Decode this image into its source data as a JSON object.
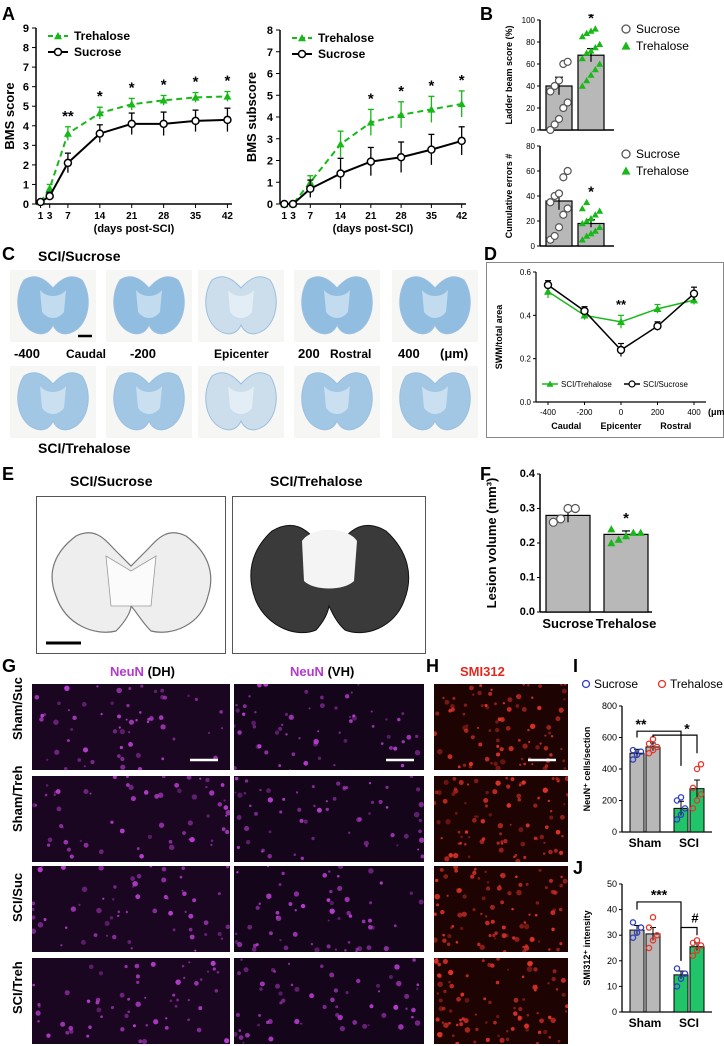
{
  "panel_letters": {
    "A": "A",
    "B": "B",
    "C": "C",
    "D": "D",
    "E": "E",
    "F": "F",
    "G": "G",
    "H": "H",
    "I": "I",
    "J": "J"
  },
  "colors": {
    "trehalose": "#18b818",
    "sucrose": "#000000",
    "nissl_blue": "#7fb3dd",
    "neun": "#c040d8",
    "smi": "#e8352b",
    "bar_gray": "#b8b8b8",
    "bar_green": "#22c46a",
    "sham_dot": "#2f3fc0",
    "treh_dot": "#e8352b"
  },
  "C": {
    "title_top": "SCI/Sucrose",
    "title_bottom": "SCI/Trehalose",
    "positions": [
      "-400",
      "Caudal",
      "-200",
      "Epicenter",
      "200",
      "Rostral",
      "400",
      "(μm)"
    ]
  },
  "E": {
    "left_title": "SCI/Sucrose",
    "right_title": "SCI/Trehalose"
  },
  "G": {
    "col1_a": "NeuN",
    "col1_b": "(DH)",
    "col2_a": "NeuN",
    "col2_b": "(VH)",
    "rows": [
      "Sham/Suc",
      "Sham/Treh",
      "SCI/Suc",
      "SCI/Treh"
    ]
  },
  "H": {
    "title": "SMI312"
  },
  "chart_data": [
    {
      "id": "A1",
      "type": "line",
      "x": [
        1,
        3,
        7,
        14,
        21,
        28,
        35,
        42
      ],
      "xticks": [
        1,
        3,
        7,
        14,
        21,
        28,
        35,
        42
      ],
      "xlabel": "(days post-SCI)",
      "ylabel": "BMS score",
      "ylim": [
        0,
        9
      ],
      "yticks": [
        0,
        1,
        2,
        3,
        4,
        5,
        6,
        7,
        8,
        9
      ],
      "legend_position": "top-left",
      "series": [
        {
          "name": "Trehalose",
          "values": [
            0.1,
            0.8,
            3.6,
            4.65,
            5.1,
            5.3,
            5.45,
            5.5
          ],
          "err": [
            0.1,
            0.2,
            0.35,
            0.3,
            0.3,
            0.25,
            0.25,
            0.25
          ],
          "style": "dashed",
          "color": "#18b818",
          "marker": "triangle"
        },
        {
          "name": "Sucrose",
          "values": [
            0.1,
            0.4,
            2.1,
            3.6,
            4.1,
            4.1,
            4.25,
            4.3
          ],
          "err": [
            0.1,
            0.2,
            0.5,
            0.45,
            0.55,
            0.6,
            0.55,
            0.6
          ],
          "style": "solid",
          "color": "#000000",
          "marker": "circle"
        }
      ],
      "annotations": [
        {
          "x": 7,
          "text": "**"
        },
        {
          "x": 14,
          "text": "*"
        },
        {
          "x": 21,
          "text": "*"
        },
        {
          "x": 28,
          "text": "*"
        },
        {
          "x": 35,
          "text": "*"
        },
        {
          "x": 42,
          "text": "*"
        }
      ]
    },
    {
      "id": "A2",
      "type": "line",
      "x": [
        1,
        3,
        7,
        14,
        21,
        28,
        35,
        42
      ],
      "xticks": [
        1,
        3,
        7,
        14,
        21,
        28,
        35,
        42
      ],
      "xlabel": "(days post-SCI)",
      "ylabel": "BMS subscore",
      "ylim": [
        0,
        8
      ],
      "yticks": [
        0,
        1,
        2,
        3,
        4,
        5,
        6,
        7,
        8
      ],
      "legend_position": "top-left",
      "series": [
        {
          "name": "Trehalose",
          "values": [
            0,
            0,
            1.0,
            2.75,
            3.75,
            4.1,
            4.35,
            4.6
          ],
          "err": [
            0,
            0,
            0.3,
            0.6,
            0.6,
            0.6,
            0.6,
            0.6
          ],
          "style": "dashed",
          "color": "#18b818",
          "marker": "triangle"
        },
        {
          "name": "Sucrose",
          "values": [
            0,
            0,
            0.7,
            1.4,
            1.95,
            2.15,
            2.5,
            2.9
          ],
          "err": [
            0,
            0,
            0.4,
            0.7,
            0.65,
            0.7,
            0.7,
            0.65
          ],
          "style": "solid",
          "color": "#000000",
          "marker": "circle"
        }
      ],
      "annotations": [
        {
          "x": 21,
          "text": "*"
        },
        {
          "x": 28,
          "text": "*"
        },
        {
          "x": 35,
          "text": "*"
        },
        {
          "x": 42,
          "text": "*"
        }
      ]
    },
    {
      "id": "B1",
      "type": "bar",
      "categories": [
        "Sucrose",
        "Trehalose"
      ],
      "values": [
        40,
        68
      ],
      "err": [
        8,
        6
      ],
      "ylabel": "Ladder beam score (%)",
      "ylim": [
        0,
        100
      ],
      "yticks": [
        0,
        20,
        40,
        60,
        80,
        100
      ],
      "points": [
        [
          0,
          5,
          10,
          20,
          25,
          35,
          40,
          45,
          60,
          62
        ],
        [
          40,
          45,
          50,
          55,
          60,
          65,
          70,
          72,
          75,
          78,
          85,
          88,
          90,
          92
        ]
      ],
      "annotation": "*",
      "legend_position": "right",
      "legend": [
        "Sucrose",
        "Trehalose"
      ]
    },
    {
      "id": "B2",
      "type": "bar",
      "categories": [
        "Sucrose",
        "Trehalose"
      ],
      "values": [
        36,
        18
      ],
      "err": [
        7,
        3
      ],
      "ylabel": "Cumulative errors #",
      "ylim": [
        0,
        80
      ],
      "yticks": [
        0,
        20,
        40,
        60,
        80
      ],
      "points": [
        [
          5,
          8,
          15,
          25,
          30,
          35,
          40,
          42,
          55,
          60
        ],
        [
          5,
          8,
          10,
          12,
          15,
          18,
          20,
          22,
          25,
          28,
          30,
          35
        ]
      ],
      "annotation": "*",
      "legend_position": "right",
      "legend": [
        "Sucrose",
        "Trehalose"
      ]
    },
    {
      "id": "D",
      "type": "line",
      "x": [
        -400,
        -200,
        0,
        200,
        400
      ],
      "xticks": [
        "-400",
        "-200",
        "0",
        "200",
        "400"
      ],
      "xunit": "(μm)",
      "xsublabels": [
        "Caudal",
        "Epicenter",
        "Rostral"
      ],
      "ylabel": "SWM/total area",
      "ylim": [
        0,
        0.6
      ],
      "yticks": [
        "0.0",
        "0.2",
        "0.4",
        "0.6"
      ],
      "legend_position": "bottom",
      "series": [
        {
          "name": "SCI/Trehalose",
          "values": [
            0.51,
            0.4,
            0.37,
            0.43,
            0.47
          ],
          "err": [
            0.03,
            0.02,
            0.03,
            0.02,
            0.02
          ],
          "color": "#18b818",
          "marker": "triangle"
        },
        {
          "name": "SCI/Sucrose",
          "values": [
            0.54,
            0.42,
            0.24,
            0.35,
            0.5
          ],
          "err": [
            0.02,
            0.02,
            0.03,
            0.02,
            0.03
          ],
          "color": "#000000",
          "marker": "circle"
        }
      ],
      "annotation": {
        "x": 0,
        "text": "**"
      }
    },
    {
      "id": "F",
      "type": "bar",
      "categories": [
        "Sucrose",
        "Trehalose"
      ],
      "values": [
        0.28,
        0.225
      ],
      "err": [
        0.02,
        0.01
      ],
      "ylabel": "Lesion volume (mm³)",
      "ylim": [
        0,
        0.4
      ],
      "yticks": [
        "0.0",
        "0.1",
        "0.2",
        "0.3",
        "0.4"
      ],
      "points": [
        [
          0.26,
          0.27,
          0.3,
          0.3
        ],
        [
          0.2,
          0.21,
          0.22,
          0.23,
          0.23,
          0.24
        ]
      ],
      "annotation": "*"
    },
    {
      "id": "I",
      "type": "bar",
      "groups": [
        "Sham",
        "SCI"
      ],
      "legend": [
        "Sucrose",
        "Trehalose"
      ],
      "legend_position": "top",
      "values": [
        [
          500,
          540
        ],
        [
          150,
          275
        ]
      ],
      "err": [
        [
          25,
          25
        ],
        [
          45,
          55
        ]
      ],
      "ylabel": "NeuN⁺ cells/section",
      "ylim": [
        0,
        800
      ],
      "yticks": [
        0,
        200,
        400,
        600,
        800
      ],
      "points": [
        [
          [
            460,
            490,
            510,
            520
          ],
          [
            500,
            520,
            540,
            560,
            590
          ]
        ],
        [
          [
            80,
            110,
            150,
            200,
            220
          ],
          [
            150,
            200,
            240,
            280,
            400,
            430
          ]
        ]
      ],
      "annotations": [
        "**",
        "*"
      ]
    },
    {
      "id": "J",
      "type": "bar",
      "groups": [
        "Sham",
        "SCI"
      ],
      "values": [
        [
          32,
          30.5
        ],
        [
          14.5,
          25.5
        ]
      ],
      "err": [
        [
          1.8,
          2.5
        ],
        [
          1.5,
          1.5
        ]
      ],
      "ylabel": "SMI312⁺ intensity",
      "ylim": [
        0,
        50
      ],
      "yticks": [
        0,
        10,
        20,
        30,
        40,
        50
      ],
      "points": [
        [
          [
            29,
            31,
            33,
            35
          ],
          [
            25,
            28,
            30,
            33,
            37
          ]
        ],
        [
          [
            10,
            13,
            15,
            17
          ],
          [
            22,
            24,
            26,
            27,
            28
          ]
        ]
      ],
      "annotations": [
        "***",
        "#"
      ]
    }
  ]
}
